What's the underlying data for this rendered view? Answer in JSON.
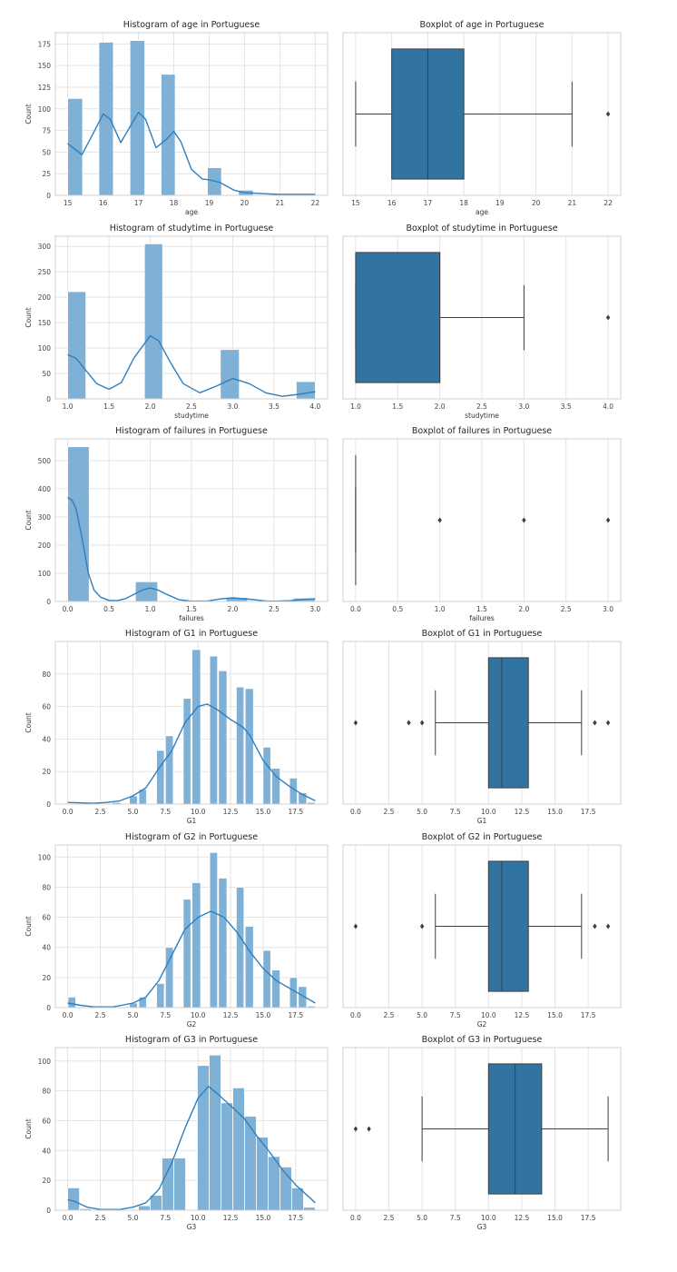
{
  "colors": {
    "hist_fill": "#7fb0d6",
    "hist_edge": "#ffffff",
    "kde_line": "#2f7fbf",
    "box_fill": "#3274a1",
    "box_line": "#3f3f3f",
    "grid": "#e3e3e3",
    "spine": "#d0d0d0"
  },
  "chart_data": [
    {
      "type": "bar",
      "kind": "histogram",
      "title": "Histogram of age in Portuguese",
      "xlabel": "age",
      "ylabel": "Count",
      "xlim": [
        14.65,
        22.35
      ],
      "ylim": [
        0,
        188
      ],
      "grid": true,
      "xticks": [
        15,
        16,
        17,
        18,
        19,
        20,
        21,
        22
      ],
      "xtick_labels": [
        "15",
        "16",
        "17",
        "18",
        "19",
        "20",
        "21",
        "22"
      ],
      "yticks": [
        0,
        25,
        50,
        75,
        100,
        125,
        150,
        175
      ],
      "ytick_labels": [
        "0",
        "25",
        "50",
        "75",
        "100",
        "125",
        "150",
        "175"
      ],
      "bars": [
        [
          15,
          15.42,
          112
        ],
        [
          15.88,
          16.29,
          177
        ],
        [
          16.76,
          17.18,
          179
        ],
        [
          17.64,
          18.04,
          140
        ],
        [
          18.95,
          19.35,
          32
        ],
        [
          19.83,
          20.25,
          6
        ],
        [
          20.7,
          21.1,
          1
        ],
        [
          21.59,
          22,
          1
        ]
      ],
      "kde": [
        [
          15,
          60
        ],
        [
          15.4,
          47
        ],
        [
          15.7,
          70
        ],
        [
          16,
          94
        ],
        [
          16.2,
          88
        ],
        [
          16.5,
          61
        ],
        [
          16.8,
          82
        ],
        [
          17,
          96
        ],
        [
          17.2,
          88
        ],
        [
          17.5,
          55
        ],
        [
          17.8,
          65
        ],
        [
          18,
          74
        ],
        [
          18.2,
          62
        ],
        [
          18.5,
          30
        ],
        [
          18.8,
          19
        ],
        [
          19,
          18
        ],
        [
          19.3,
          15
        ],
        [
          19.7,
          6
        ],
        [
          20,
          3
        ],
        [
          20.5,
          2
        ],
        [
          21,
          1
        ],
        [
          22,
          1
        ]
      ]
    },
    {
      "type": "box",
      "title": "Boxplot of age in Portuguese",
      "xlabel": "age",
      "xlim": [
        14.65,
        22.35
      ],
      "grid": true,
      "xticks": [
        15,
        16,
        17,
        18,
        19,
        20,
        21,
        22
      ],
      "xtick_labels": [
        "15",
        "16",
        "17",
        "18",
        "19",
        "20",
        "21",
        "22"
      ],
      "whisker_low": 15,
      "q1": 16,
      "median": 17,
      "q3": 18,
      "whisker_high": 21,
      "outliers": [
        22
      ]
    },
    {
      "type": "bar",
      "kind": "histogram",
      "title": "Histogram of studytime in Portuguese",
      "xlabel": "studytime",
      "ylabel": "Count",
      "xlim": [
        0.85,
        4.15
      ],
      "ylim": [
        0,
        320
      ],
      "grid": true,
      "xticks": [
        1,
        1.5,
        2,
        2.5,
        3,
        3.5,
        4
      ],
      "xtick_labels": [
        "1.0",
        "1.5",
        "2.0",
        "2.5",
        "3.0",
        "3.5",
        "4.0"
      ],
      "yticks": [
        0,
        50,
        100,
        150,
        200,
        250,
        300
      ],
      "ytick_labels": [
        "0",
        "50",
        "100",
        "150",
        "200",
        "250",
        "300"
      ],
      "bars": [
        [
          1,
          1.22,
          211
        ],
        [
          1.93,
          2.15,
          305
        ],
        [
          2.85,
          3.08,
          97
        ],
        [
          3.77,
          4,
          34
        ]
      ],
      "kde": [
        [
          1,
          87
        ],
        [
          1.1,
          80
        ],
        [
          1.2,
          60
        ],
        [
          1.35,
          30
        ],
        [
          1.5,
          19
        ],
        [
          1.65,
          32
        ],
        [
          1.8,
          80
        ],
        [
          2,
          124
        ],
        [
          2.1,
          115
        ],
        [
          2.25,
          70
        ],
        [
          2.4,
          30
        ],
        [
          2.6,
          12
        ],
        [
          2.8,
          25
        ],
        [
          3,
          40
        ],
        [
          3.2,
          30
        ],
        [
          3.4,
          12
        ],
        [
          3.6,
          5
        ],
        [
          3.8,
          9
        ],
        [
          4,
          14
        ]
      ]
    },
    {
      "type": "box",
      "title": "Boxplot of studytime in Portuguese",
      "xlabel": "studytime",
      "xlim": [
        0.85,
        4.15
      ],
      "grid": true,
      "xticks": [
        1,
        1.5,
        2,
        2.5,
        3,
        3.5,
        4
      ],
      "xtick_labels": [
        "1.0",
        "1.5",
        "2.0",
        "2.5",
        "3.0",
        "3.5",
        "4.0"
      ],
      "whisker_low": 1,
      "q1": 1,
      "median": 2,
      "q3": 2,
      "whisker_high": 3,
      "outliers": [
        4
      ]
    },
    {
      "type": "bar",
      "kind": "histogram",
      "title": "Histogram of failures in Portuguese",
      "xlabel": "failures",
      "ylabel": "Count",
      "xlim": [
        -0.15,
        3.15
      ],
      "ylim": [
        0,
        577
      ],
      "grid": true,
      "xticks": [
        0,
        0.5,
        1,
        1.5,
        2,
        2.5,
        3
      ],
      "xtick_labels": [
        "0.0",
        "0.5",
        "1.0",
        "1.5",
        "2.0",
        "2.5",
        "3.0"
      ],
      "yticks": [
        0,
        100,
        200,
        300,
        400,
        500
      ],
      "ytick_labels": [
        "0",
        "100",
        "200",
        "300",
        "400",
        "500"
      ],
      "bars": [
        [
          0,
          0.26,
          549
        ],
        [
          0.82,
          1.09,
          70
        ],
        [
          1.92,
          2.18,
          14
        ],
        [
          2.73,
          3,
          12
        ]
      ],
      "kde": [
        [
          0,
          368
        ],
        [
          0.05,
          360
        ],
        [
          0.1,
          330
        ],
        [
          0.17,
          230
        ],
        [
          0.25,
          100
        ],
        [
          0.32,
          40
        ],
        [
          0.4,
          15
        ],
        [
          0.5,
          4
        ],
        [
          0.6,
          3
        ],
        [
          0.7,
          10
        ],
        [
          0.8,
          25
        ],
        [
          0.9,
          40
        ],
        [
          1,
          48
        ],
        [
          1.1,
          40
        ],
        [
          1.2,
          25
        ],
        [
          1.35,
          6
        ],
        [
          1.5,
          1
        ],
        [
          1.7,
          2
        ],
        [
          1.85,
          9
        ],
        [
          2,
          13
        ],
        [
          2.2,
          8
        ],
        [
          2.4,
          2
        ],
        [
          2.5,
          1
        ],
        [
          2.7,
          3
        ],
        [
          2.85,
          7
        ],
        [
          3,
          10
        ]
      ]
    },
    {
      "type": "box",
      "title": "Boxplot of failures in Portuguese",
      "xlabel": "failures",
      "xlim": [
        -0.15,
        3.15
      ],
      "grid": true,
      "xticks": [
        0,
        0.5,
        1,
        1.5,
        2,
        2.5,
        3
      ],
      "xtick_labels": [
        "0.0",
        "0.5",
        "1.0",
        "1.5",
        "2.0",
        "2.5",
        "3.0"
      ],
      "whisker_low": 0,
      "q1": 0,
      "median": 0,
      "q3": 0,
      "whisker_high": 0,
      "outliers": [
        1,
        2,
        3
      ]
    },
    {
      "type": "bar",
      "kind": "histogram",
      "title": "Histogram of G1 in Portuguese",
      "xlabel": "G1",
      "ylabel": "Count",
      "xlim": [
        -0.95,
        19.95
      ],
      "ylim": [
        0,
        100
      ],
      "grid": true,
      "xticks": [
        0,
        2.5,
        5,
        7.5,
        10,
        12.5,
        15,
        17.5
      ],
      "xtick_labels": [
        "0.0",
        "2.5",
        "5.0",
        "7.5",
        "10.0",
        "12.5",
        "15.0",
        "17.5"
      ],
      "yticks": [
        0,
        20,
        40,
        60,
        80
      ],
      "ytick_labels": [
        "0",
        "20",
        "40",
        "60",
        "80"
      ],
      "bars": [
        [
          3.42,
          4.06,
          1
        ],
        [
          4.74,
          5.35,
          5
        ],
        [
          5.46,
          6.05,
          9
        ],
        [
          6.82,
          7.41,
          33
        ],
        [
          7.5,
          8.1,
          42
        ],
        [
          8.87,
          9.45,
          65
        ],
        [
          9.54,
          10.2,
          95
        ],
        [
          10.9,
          11.5,
          91
        ],
        [
          11.58,
          12.22,
          82
        ],
        [
          12.94,
          13.53,
          72
        ],
        [
          13.62,
          14.26,
          71
        ],
        [
          14.99,
          15.58,
          35
        ],
        [
          15.67,
          16.3,
          22
        ],
        [
          17.03,
          17.62,
          16
        ],
        [
          17.7,
          18.34,
          7
        ],
        [
          18.39,
          19,
          1
        ]
      ],
      "kde": [
        [
          0,
          1
        ],
        [
          2,
          0.5
        ],
        [
          3,
          1
        ],
        [
          4,
          2
        ],
        [
          5,
          5
        ],
        [
          6,
          10
        ],
        [
          7,
          22
        ],
        [
          8,
          33
        ],
        [
          9,
          50
        ],
        [
          10,
          60
        ],
        [
          10.7,
          61.5
        ],
        [
          11.5,
          58
        ],
        [
          12.5,
          52
        ],
        [
          13.5,
          47
        ],
        [
          14,
          42
        ],
        [
          15,
          27
        ],
        [
          16,
          17
        ],
        [
          17,
          11
        ],
        [
          18,
          6
        ],
        [
          19,
          2
        ]
      ]
    },
    {
      "type": "box",
      "title": "Boxplot of G1 in Portuguese",
      "xlabel": "G1",
      "xlim": [
        -0.95,
        19.95
      ],
      "grid": true,
      "xticks": [
        0,
        2.5,
        5,
        7.5,
        10,
        12.5,
        15,
        17.5
      ],
      "xtick_labels": [
        "0.0",
        "2.5",
        "5.0",
        "7.5",
        "10.0",
        "12.5",
        "15.0",
        "17.5"
      ],
      "whisker_low": 6,
      "q1": 10,
      "median": 11,
      "q3": 13,
      "whisker_high": 17,
      "outliers": [
        0,
        4,
        5,
        18,
        19
      ]
    },
    {
      "type": "bar",
      "kind": "histogram",
      "title": "Histogram of G2 in Portuguese",
      "xlabel": "G2",
      "ylabel": "Count",
      "xlim": [
        -0.95,
        19.95
      ],
      "ylim": [
        0,
        108
      ],
      "grid": true,
      "xticks": [
        0,
        2.5,
        5,
        7.5,
        10,
        12.5,
        15,
        17.5
      ],
      "xtick_labels": [
        "0.0",
        "2.5",
        "5.0",
        "7.5",
        "10.0",
        "12.5",
        "15.0",
        "17.5"
      ],
      "yticks": [
        0,
        20,
        40,
        60,
        80,
        100
      ],
      "ytick_labels": [
        "0",
        "20",
        "40",
        "60",
        "80",
        "100"
      ],
      "bars": [
        [
          0.02,
          0.61,
          7
        ],
        [
          4.74,
          5.35,
          3
        ],
        [
          5.46,
          6.05,
          7
        ],
        [
          6.82,
          7.41,
          16
        ],
        [
          7.5,
          8.1,
          40
        ],
        [
          8.87,
          9.45,
          72
        ],
        [
          9.54,
          10.2,
          83
        ],
        [
          10.9,
          11.5,
          103
        ],
        [
          11.58,
          12.22,
          86
        ],
        [
          12.94,
          13.53,
          80
        ],
        [
          13.62,
          14.26,
          54
        ],
        [
          14.99,
          15.58,
          38
        ],
        [
          15.67,
          16.3,
          25
        ],
        [
          17.03,
          17.62,
          20
        ],
        [
          17.7,
          18.34,
          14
        ],
        [
          18.39,
          19,
          1
        ]
      ],
      "kde": [
        [
          0,
          3
        ],
        [
          1,
          1.5
        ],
        [
          2,
          0.5
        ],
        [
          3.5,
          0.5
        ],
        [
          5,
          3
        ],
        [
          6,
          7
        ],
        [
          7,
          18
        ],
        [
          8,
          35
        ],
        [
          9,
          52
        ],
        [
          10,
          60
        ],
        [
          11,
          64
        ],
        [
          12,
          60
        ],
        [
          13,
          50
        ],
        [
          14,
          37
        ],
        [
          15,
          26
        ],
        [
          16,
          18
        ],
        [
          17,
          13
        ],
        [
          18,
          8
        ],
        [
          19,
          3
        ]
      ]
    },
    {
      "type": "box",
      "title": "Boxplot of G2 in Portuguese",
      "xlabel": "G2",
      "xlim": [
        -0.95,
        19.95
      ],
      "grid": true,
      "xticks": [
        0,
        2.5,
        5,
        7.5,
        10,
        12.5,
        15,
        17.5
      ],
      "xtick_labels": [
        "0.0",
        "2.5",
        "5.0",
        "7.5",
        "10.0",
        "12.5",
        "15.0",
        "17.5"
      ],
      "whisker_low": 6,
      "q1": 10,
      "median": 11,
      "q3": 13,
      "whisker_high": 17,
      "outliers": [
        0,
        5,
        18,
        19
      ]
    },
    {
      "type": "bar",
      "kind": "histogram",
      "title": "Histogram of G3 in Portuguese",
      "xlabel": "G3",
      "ylabel": "Count",
      "xlim": [
        -0.95,
        19.95
      ],
      "ylim": [
        0,
        109
      ],
      "grid": true,
      "xticks": [
        0,
        2.5,
        5,
        7.5,
        10,
        12.5,
        15,
        17.5
      ],
      "xtick_labels": [
        "0.0",
        "2.5",
        "5.0",
        "7.5",
        "10.0",
        "12.5",
        "15.0",
        "17.5"
      ],
      "yticks": [
        0,
        20,
        40,
        60,
        80,
        100
      ],
      "ytick_labels": [
        "0",
        "20",
        "40",
        "60",
        "80",
        "100"
      ],
      "bars": [
        [
          0,
          0.905,
          15
        ],
        [
          0.905,
          1.81,
          1
        ],
        [
          5.43,
          6.33,
          3
        ],
        [
          6.33,
          7.24,
          10
        ],
        [
          7.24,
          8.14,
          35
        ],
        [
          8.14,
          9.05,
          35
        ],
        [
          9.95,
          10.86,
          97
        ],
        [
          10.86,
          11.76,
          104
        ],
        [
          11.76,
          12.67,
          72
        ],
        [
          12.67,
          13.57,
          82
        ],
        [
          13.57,
          14.48,
          63
        ],
        [
          14.48,
          15.38,
          49
        ],
        [
          15.38,
          16.29,
          36
        ],
        [
          16.29,
          17.19,
          29
        ],
        [
          17.19,
          18.1,
          15
        ],
        [
          18.1,
          19,
          2
        ]
      ],
      "kde": [
        [
          0,
          7
        ],
        [
          0.5,
          6
        ],
        [
          1.5,
          2
        ],
        [
          2.5,
          0.5
        ],
        [
          4,
          0.5
        ],
        [
          5,
          2
        ],
        [
          6,
          5
        ],
        [
          7,
          14
        ],
        [
          8,
          32
        ],
        [
          9,
          55
        ],
        [
          10,
          75
        ],
        [
          10.8,
          83
        ],
        [
          11.5,
          78
        ],
        [
          12.5,
          70
        ],
        [
          13.5,
          62
        ],
        [
          14.5,
          50
        ],
        [
          15.5,
          39
        ],
        [
          16.5,
          27
        ],
        [
          17.5,
          17
        ],
        [
          18.5,
          9
        ],
        [
          19,
          5
        ]
      ]
    },
    {
      "type": "box",
      "title": "Boxplot of G3 in Portuguese",
      "xlabel": "G3",
      "xlim": [
        -0.95,
        19.95
      ],
      "grid": true,
      "xticks": [
        0,
        2.5,
        5,
        7.5,
        10,
        12.5,
        15,
        17.5
      ],
      "xtick_labels": [
        "0.0",
        "2.5",
        "5.0",
        "7.5",
        "10.0",
        "12.5",
        "15.0",
        "17.5"
      ],
      "whisker_low": 5,
      "q1": 10,
      "median": 12,
      "q3": 14,
      "whisker_high": 19,
      "outliers": [
        0,
        1
      ]
    }
  ]
}
